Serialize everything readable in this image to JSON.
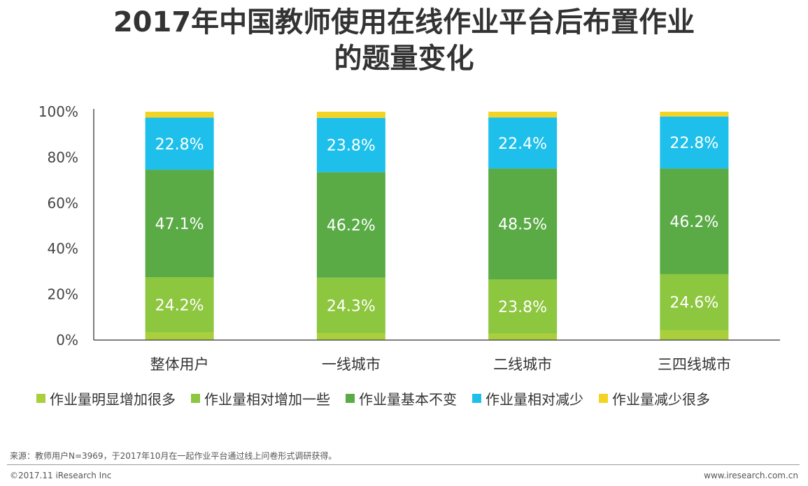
{
  "title_lines": [
    "2017年中国教师使用在线作业平台后布置作业",
    "的题量变化"
  ],
  "chart_data": {
    "type": "bar",
    "stacked": true,
    "categories": [
      "整体用户",
      "一线城市",
      "二线城市",
      "三四线城市"
    ],
    "y_ticks": [
      "0%",
      "20%",
      "40%",
      "60%",
      "80%",
      "100%"
    ],
    "ylim": [
      0,
      100
    ],
    "series": [
      {
        "name": "作业量明显增加很多",
        "color": "#a9cf3a",
        "values": [
          3.3,
          3.0,
          2.8,
          4.3
        ],
        "labels": [
          "",
          "",
          "",
          ""
        ]
      },
      {
        "name": "作业量相对增加一些",
        "color": "#8dc63f",
        "values": [
          24.2,
          24.3,
          23.8,
          24.6
        ],
        "labels": [
          "24.2%",
          "24.3%",
          "23.8%",
          "24.6%"
        ]
      },
      {
        "name": "作业量基本不变",
        "color": "#5aab46",
        "values": [
          47.1,
          46.2,
          48.5,
          46.2
        ],
        "labels": [
          "47.1%",
          "46.2%",
          "48.5%",
          "46.2%"
        ]
      },
      {
        "name": "作业量相对减少",
        "color": "#1ec0eb",
        "values": [
          22.8,
          23.8,
          22.4,
          22.8
        ],
        "labels": [
          "22.8%",
          "23.8%",
          "22.4%",
          "22.8%"
        ]
      },
      {
        "name": "作业量减少很多",
        "color": "#f3d324",
        "values": [
          2.6,
          2.7,
          2.5,
          2.1
        ],
        "labels": [
          "",
          "",
          "",
          ""
        ]
      }
    ],
    "grid": false,
    "legend_position": "bottom"
  },
  "footer": {
    "source": "来源：教师用户N=3969，于2017年10月在一起作业平台通过线上问卷形式调研获得。",
    "copyright": "©2017.11 iResearch Inc",
    "website": "www.iresearch.com.cn"
  }
}
